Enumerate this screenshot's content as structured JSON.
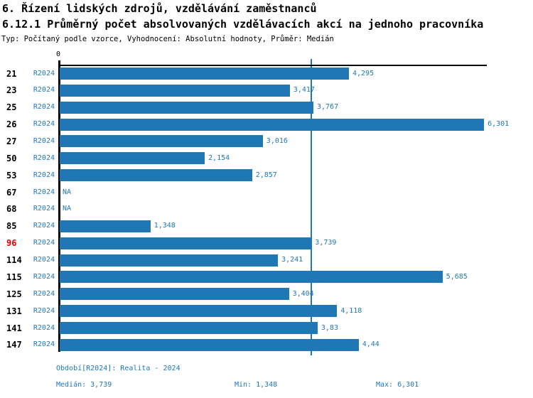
{
  "header": {
    "title_line1": "6. Řízení lidských zdrojů, vzdělávání zaměstnanců",
    "title_line2": "6.12.1 Průměrný počet absolvovaných vzdělávacích akcí na jednoho pracovníka",
    "subtitle": "Typ: Počítaný podle vzorce, Vyhodnocení: Absolutní hodnoty, Průměr: Medián"
  },
  "chart_data": {
    "type": "bar",
    "orientation": "horizontal",
    "title": "6.12.1 Průměrný počet absolvovaných vzdělávacích akcí na jednoho pracovníka",
    "categories": [
      "21",
      "23",
      "25",
      "26",
      "27",
      "50",
      "53",
      "67",
      "68",
      "85",
      "96",
      "114",
      "115",
      "125",
      "131",
      "141",
      "147"
    ],
    "series": [
      {
        "name": "R2024",
        "values": [
          4.295,
          3.417,
          3.767,
          6.301,
          3.016,
          2.154,
          2.857,
          null,
          null,
          1.348,
          3.739,
          3.241,
          5.685,
          3.404,
          4.118,
          3.83,
          4.44
        ],
        "value_labels": [
          "4,295",
          "3,417",
          "3,767",
          "6,301",
          "3,016",
          "2,154",
          "2,857",
          "NA",
          "NA",
          "1,348",
          "3,739",
          "3,241",
          "5,685",
          "3,404",
          "4,118",
          "3,83",
          "4,44"
        ]
      }
    ],
    "period_label": "R2024",
    "na_label": "NA",
    "highlighted_category": "96",
    "median_value": 3.739,
    "xlim": [
      0,
      6.3635
    ],
    "x_tick_labels": [
      "0"
    ],
    "grid": false,
    "legend_position": "none",
    "bar_color": "#2077b4",
    "label_color": "#1f77b4",
    "highlight_color": "#dd0000",
    "axis_color": "#000000"
  },
  "footer": {
    "period_info": "Období[R2024]: Realita - 2024",
    "median_label": "Medián: 3,739",
    "min_label": "Min: 1,348",
    "max_label": "Max: 6,301"
  }
}
